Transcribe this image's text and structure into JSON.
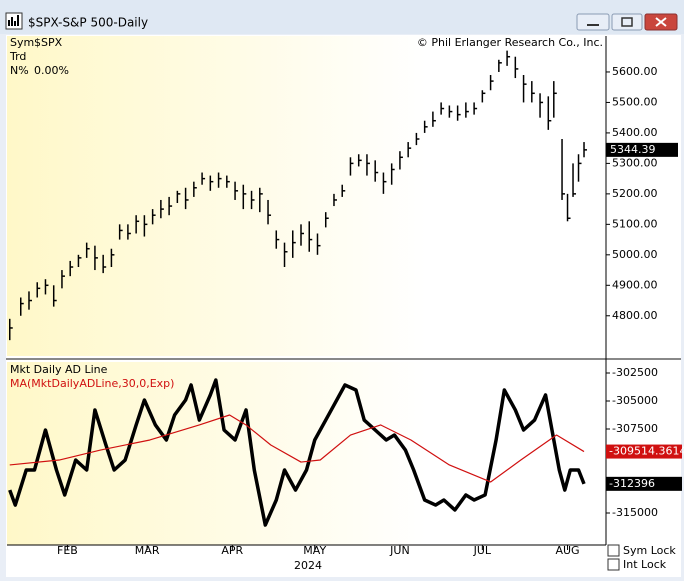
{
  "window": {
    "title": "$SPX-S&P 500-Daily"
  },
  "chart_data": [
    {
      "type": "ohlc",
      "legend_rows": [
        [
          "Sym",
          "$SPX"
        ],
        [
          "Trd"
        ],
        [
          "N%",
          "0.00%"
        ]
      ],
      "source": "© Phil Erlanger Research Co., Inc.",
      "color": "#000000",
      "x": [
        11,
        15,
        18,
        21,
        24,
        27,
        30,
        33,
        36,
        39,
        42,
        45,
        48,
        51,
        54,
        57,
        60,
        63,
        66,
        69,
        72,
        75,
        78,
        81,
        84,
        87,
        90,
        93,
        96,
        99,
        102,
        105,
        108,
        111,
        114,
        117,
        120,
        123,
        126,
        129,
        132,
        135,
        138,
        141,
        144,
        147,
        150,
        153,
        156,
        159,
        162,
        165,
        168,
        171,
        174,
        177,
        180,
        183,
        186,
        189,
        192,
        195,
        198,
        201,
        204,
        207,
        209,
        212,
        214,
        216,
        218,
        220
      ],
      "high": [
        4790,
        4860,
        4880,
        4910,
        4920,
        4900,
        4950,
        4980,
        5000,
        5040,
        5030,
        5000,
        5020,
        5100,
        5100,
        5130,
        5130,
        5150,
        5180,
        5190,
        5210,
        5220,
        5240,
        5270,
        5260,
        5270,
        5260,
        5240,
        5230,
        5210,
        5220,
        5180,
        5080,
        5040,
        5080,
        5100,
        5110,
        5070,
        5140,
        5200,
        5230,
        5320,
        5330,
        5330,
        5310,
        5270,
        5300,
        5340,
        5370,
        5400,
        5440,
        5470,
        5500,
        5490,
        5490,
        5500,
        5500,
        5540,
        5590,
        5640,
        5670,
        5650,
        5590,
        5570,
        5530,
        5520,
        5570,
        5380,
        5200,
        5300,
        5330,
        5370
      ],
      "low": [
        4720,
        4800,
        4820,
        4860,
        4870,
        4830,
        4890,
        4930,
        4960,
        4990,
        4950,
        4940,
        4960,
        5050,
        5050,
        5070,
        5060,
        5100,
        5120,
        5130,
        5170,
        5150,
        5190,
        5230,
        5210,
        5220,
        5220,
        5180,
        5150,
        5150,
        5140,
        5100,
        5020,
        4960,
        4990,
        5030,
        5010,
        5000,
        5090,
        5160,
        5190,
        5260,
        5290,
        5260,
        5240,
        5200,
        5230,
        5280,
        5320,
        5360,
        5400,
        5420,
        5460,
        5450,
        5440,
        5450,
        5460,
        5500,
        5540,
        5600,
        5620,
        5580,
        5500,
        5500,
        5450,
        5410,
        5450,
        5180,
        5110,
        5190,
        5240,
        5320
      ],
      "close": [
        4760,
        4840,
        4850,
        4890,
        4900,
        4850,
        4930,
        4960,
        4990,
        5020,
        4990,
        4960,
        5000,
        5080,
        5070,
        5110,
        5100,
        5130,
        5150,
        5160,
        5200,
        5180,
        5220,
        5250,
        5240,
        5250,
        5240,
        5210,
        5200,
        5180,
        5200,
        5130,
        5050,
        5010,
        5040,
        5070,
        5050,
        5030,
        5120,
        5180,
        5210,
        5300,
        5310,
        5300,
        5270,
        5240,
        5280,
        5320,
        5350,
        5380,
        5420,
        5440,
        5480,
        5470,
        5460,
        5470,
        5480,
        5530,
        5570,
        5630,
        5650,
        5610,
        5560,
        5530,
        5500,
        5440,
        5530,
        5200,
        5120,
        5200,
        5300,
        5344.39
      ],
      "xlim": [
        10,
        228
      ],
      "ylim": [
        4668,
        5718
      ],
      "yticks": [
        {
          "value": 4800,
          "label": "4800.00"
        },
        {
          "value": 4900,
          "label": "4900.00"
        },
        {
          "value": 5000,
          "label": "5000.00"
        },
        {
          "value": 5100,
          "label": "5100.00"
        },
        {
          "value": 5200,
          "label": "5200.00"
        },
        {
          "value": 5300,
          "label": "5300.00"
        },
        {
          "value": 5400,
          "label": "5400.00"
        },
        {
          "value": 5500,
          "label": "5500.00"
        },
        {
          "value": 5600,
          "label": "5600.00"
        }
      ]
    },
    {
      "type": "line",
      "xlim": [
        10,
        228
      ],
      "ylim": [
        -317857,
        -301518
      ],
      "yticks": [
        -302500,
        -305000,
        -307500,
        -315000
      ],
      "xticks": [
        {
          "value": 32,
          "label": "FEB"
        },
        {
          "value": 61,
          "label": "MAR"
        },
        {
          "value": 92,
          "label": "APR"
        },
        {
          "value": 122,
          "label": "MAY"
        },
        {
          "value": 153,
          "label": "JUN"
        },
        {
          "value": 183,
          "label": "JUL"
        },
        {
          "value": 214,
          "label": "AUG"
        }
      ],
      "xlabel": "2024",
      "series": [
        {
          "name": "Mkt Daily AD Line",
          "color": "#000000",
          "x": [
            11,
            13,
            17,
            20,
            24,
            28,
            31,
            35,
            39,
            42,
            46,
            49,
            53,
            57,
            60,
            64,
            68,
            71,
            75,
            77,
            80,
            84,
            86,
            89,
            93,
            97,
            100,
            104,
            108,
            111,
            115,
            119,
            122,
            126,
            129,
            133,
            137,
            140,
            144,
            148,
            151,
            155,
            158,
            162,
            166,
            169,
            173,
            177,
            180,
            184,
            188,
            191,
            195,
            198,
            202,
            206,
            207,
            211,
            213,
            215,
            218,
            220
          ],
          "values": [
            -312950,
            -314290,
            -311160,
            -311160,
            -307590,
            -311160,
            -313390,
            -310270,
            -311160,
            -305800,
            -308930,
            -311160,
            -310270,
            -307140,
            -304910,
            -307140,
            -308480,
            -306250,
            -304910,
            -303570,
            -306700,
            -304460,
            -303130,
            -307590,
            -308480,
            -305800,
            -311160,
            -316070,
            -313840,
            -311160,
            -312950,
            -311160,
            -308480,
            -306700,
            -305360,
            -303570,
            -304020,
            -306700,
            -307590,
            -308480,
            -308040,
            -309380,
            -311160,
            -313840,
            -314290,
            -313840,
            -314730,
            -313390,
            -313840,
            -313390,
            -308480,
            -304020,
            -305800,
            -307590,
            -306700,
            -304460,
            -305800,
            -311160,
            -312950,
            -311160,
            -311160,
            -312396
          ]
        },
        {
          "name": "MA(MktDailyADLine,30,0,Exp)",
          "color": "#d01010",
          "x": [
            11,
            29,
            44,
            62,
            80,
            91,
            97,
            106,
            117,
            124,
            135,
            146,
            157,
            171,
            186,
            197,
            210,
            220
          ],
          "values": [
            -310710,
            -310270,
            -309380,
            -308480,
            -307140,
            -306250,
            -307140,
            -308930,
            -310450,
            -310270,
            -308040,
            -307140,
            -308480,
            -310710,
            -312230,
            -310270,
            -308040,
            -309514.3614
          ]
        }
      ]
    }
  ],
  "controls": {
    "sym_lock": "Sym Lock",
    "int_lock": "Int Lock"
  }
}
